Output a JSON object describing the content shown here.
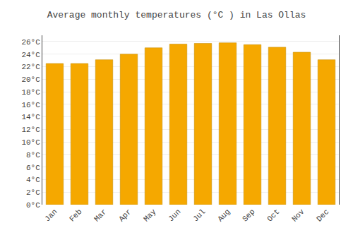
{
  "chart_data": {
    "type": "bar",
    "title": "Average monthly temperatures (°C ) in Las Ollas",
    "categories": [
      "Jan",
      "Feb",
      "Mar",
      "Apr",
      "May",
      "Jun",
      "Jul",
      "Aug",
      "Sep",
      "Oct",
      "Nov",
      "Dec"
    ],
    "values": [
      22.5,
      22.5,
      23.1,
      24.0,
      25.0,
      25.6,
      25.7,
      25.8,
      25.5,
      25.1,
      24.3,
      23.1
    ],
    "color": "#F5A800",
    "ylim": [
      0,
      27
    ],
    "yticks": [
      {
        "value": 0,
        "label": "0°C"
      },
      {
        "value": 2,
        "label": "2°C"
      },
      {
        "value": 4,
        "label": "4°C"
      },
      {
        "value": 6,
        "label": "6°C"
      },
      {
        "value": 8,
        "label": "8°C"
      },
      {
        "value": 10,
        "label": "10°C"
      },
      {
        "value": 12,
        "label": "12°C"
      },
      {
        "value": 14,
        "label": "14°C"
      },
      {
        "value": 16,
        "label": "16°C"
      },
      {
        "value": 18,
        "label": "18°C"
      },
      {
        "value": 20,
        "label": "20°C"
      },
      {
        "value": 22,
        "label": "22°C"
      },
      {
        "value": 24,
        "label": "24°C"
      },
      {
        "value": 26,
        "label": "26°C"
      }
    ],
    "grid": true
  }
}
